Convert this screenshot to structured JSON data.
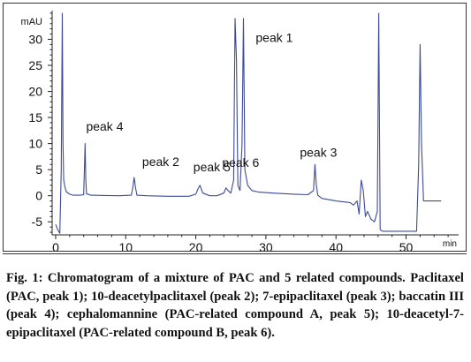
{
  "figure": {
    "caption": "Fig. 1: Chromatogram of a mixture of PAC and 5 related compounds. Paclitaxel (PAC, peak 1); 10-deacetylpaclitaxel (peak 2); 7-epipaclitaxel (peak 3); baccatin III (peak 4); cephalomannine (PAC-related compound A, peak 5); 10-deacetyl-7-epipaclitaxel (PAC-related compound B, peak 6)."
  },
  "chart_data": {
    "type": "line",
    "title": "",
    "xlabel": "min",
    "ylabel": "mAU",
    "xlim": [
      -0.5,
      57.5
    ],
    "ylim": [
      -7.5,
      35.5
    ],
    "x_ticks": [
      0,
      10,
      20,
      30,
      40,
      50
    ],
    "y_ticks": [
      -5,
      0,
      5,
      10,
      15,
      20,
      25,
      30
    ],
    "grid": false,
    "line_color": "#3c4a9c",
    "series": [
      {
        "x": [
          0.0,
          0.3,
          0.6,
          0.8,
          0.95,
          1.05,
          1.15,
          1.3,
          1.5,
          2.0,
          2.5,
          3.0,
          3.5,
          4.0,
          4.1,
          4.2,
          4.3,
          4.4,
          5.0,
          7.0,
          9.0,
          10.8,
          11.0,
          11.2,
          11.4,
          11.6,
          13.0,
          16.0,
          19.0,
          20.0,
          20.3,
          20.6,
          21.0,
          22.0,
          23.0,
          24.0,
          24.3,
          24.6,
          25.0,
          25.4,
          25.6,
          25.8,
          26.0,
          26.3,
          26.6,
          26.8,
          26.9,
          27.0,
          27.4,
          28.0,
          29.0,
          31.0,
          34.0,
          36.0,
          36.8,
          37.0,
          37.2,
          37.4,
          38.0,
          40.0,
          42.0,
          42.5,
          43.0,
          43.3,
          43.6,
          43.9,
          44.2,
          44.5,
          45.0,
          45.5,
          45.9,
          46.1,
          46.3,
          46.5,
          46.7,
          47.0,
          48.0,
          50.0,
          51.5,
          51.8,
          52.0,
          52.2,
          52.5,
          53.0,
          54.0,
          55.0
        ],
        "y": [
          -5.5,
          -6.5,
          -7.2,
          5.0,
          35.0,
          10.0,
          3.0,
          1.8,
          0.8,
          0.3,
          0.1,
          0.1,
          0.1,
          0.2,
          5.0,
          10.0,
          3.0,
          0.4,
          0.1,
          0.05,
          0.0,
          0.1,
          1.5,
          3.5,
          1.5,
          0.1,
          0.0,
          -0.1,
          -0.1,
          0.3,
          1.3,
          2.0,
          0.5,
          0.0,
          0.0,
          0.5,
          1.5,
          1.0,
          0.5,
          3.0,
          34.0,
          26.0,
          2.0,
          1.0,
          10.0,
          34.0,
          20.0,
          5.0,
          2.0,
          1.0,
          0.7,
          0.5,
          0.3,
          0.2,
          1.0,
          6.0,
          2.0,
          0.1,
          -0.5,
          -1.0,
          -1.3,
          -1.8,
          -1.0,
          -3.5,
          3.0,
          1.0,
          -4.0,
          -3.0,
          -4.5,
          -5.0,
          -3.0,
          35.0,
          -6.5,
          -6.7,
          -6.8,
          -6.8,
          -6.8,
          -6.8,
          -6.8,
          6.0,
          29.0,
          10.0,
          -1.0,
          -1.0,
          -1.0,
          -1.0
        ]
      }
    ],
    "annotations": [
      {
        "text": "peak 1",
        "x": 31.2,
        "y": 29.5
      },
      {
        "text": "peak 4",
        "x": 7.0,
        "y": 12.5
      },
      {
        "text": "peak 2",
        "x": 15.0,
        "y": 5.7
      },
      {
        "text": "peak 5",
        "x": 22.3,
        "y": 4.7
      },
      {
        "text": "peak 6",
        "x": 26.4,
        "y": 5.5
      },
      {
        "text": "peak 3",
        "x": 37.5,
        "y": 7.5
      }
    ]
  }
}
